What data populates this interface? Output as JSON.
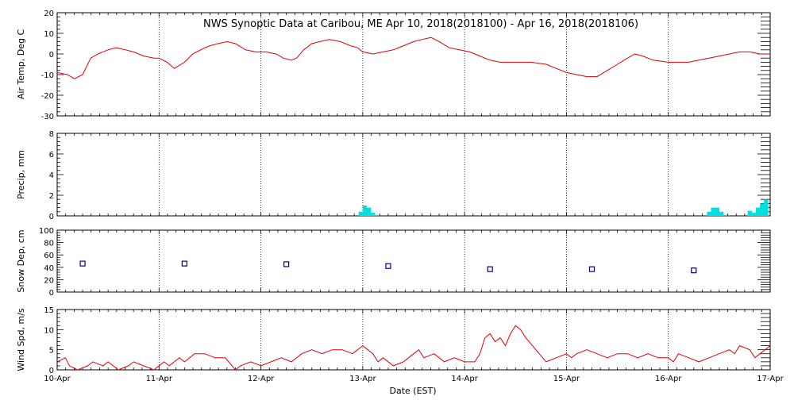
{
  "chart_data": {
    "type": "multi-panel",
    "title": "NWS Synoptic Data at Caribou, ME   Apr 10, 2018(2018100) - Apr 16, 2018(2018106)",
    "xlabel": "Date (EST)",
    "x_ticks": [
      "10-Apr",
      "11-Apr",
      "12-Apr",
      "13-Apr",
      "14-Apr",
      "15-Apr",
      "16-Apr",
      "17-Apr"
    ],
    "x_range_days": [
      0,
      7
    ],
    "panels": [
      {
        "id": "air-temp",
        "type": "line",
        "ylabel": "Air Temp, Deg C",
        "ylim": [
          -30,
          20
        ],
        "yticks": [
          -30,
          -20,
          -10,
          0,
          10,
          20
        ],
        "color": "#e00000",
        "x": [
          0,
          0.1,
          0.17,
          0.25,
          0.33,
          0.4,
          0.5,
          0.58,
          0.67,
          0.75,
          0.85,
          0.95,
          1.0,
          1.08,
          1.15,
          1.25,
          1.33,
          1.45,
          1.5,
          1.58,
          1.67,
          1.75,
          1.85,
          1.95,
          2.05,
          2.15,
          2.22,
          2.3,
          2.35,
          2.42,
          2.5,
          2.58,
          2.67,
          2.78,
          2.88,
          2.95,
          3.0,
          3.1,
          3.2,
          3.3,
          3.4,
          3.5,
          3.58,
          3.67,
          3.75,
          3.85,
          3.95,
          4.05,
          4.15,
          4.25,
          4.35,
          4.5,
          4.65,
          4.8,
          4.9,
          5.0,
          5.1,
          5.2,
          5.3,
          5.4,
          5.5,
          5.6,
          5.67,
          5.75,
          5.85,
          6.0,
          6.1,
          6.2,
          6.3,
          6.4,
          6.5,
          6.6,
          6.7,
          6.8,
          6.9,
          7.0
        ],
        "values": [
          -9,
          -10,
          -12,
          -10,
          -2,
          0,
          2,
          3,
          2,
          1,
          -1,
          -2,
          -2,
          -4,
          -7,
          -4,
          0,
          3,
          4,
          5,
          6,
          5,
          2,
          1,
          1,
          0,
          -2,
          -3,
          -2,
          2,
          5,
          6,
          7,
          6,
          4,
          3,
          1,
          0,
          1,
          2,
          4,
          6,
          7,
          8,
          6,
          3,
          2,
          1,
          -1,
          -3,
          -4,
          -4,
          -4,
          -5,
          -7,
          -9,
          -10,
          -11,
          -11,
          -8,
          -5,
          -2,
          0,
          -1,
          -3,
          -4,
          -4,
          -4,
          -3,
          -2,
          -1,
          0,
          1,
          1,
          0,
          0
        ]
      },
      {
        "id": "precip",
        "type": "bar",
        "ylabel": "Precip, mm",
        "ylim": [
          0,
          8
        ],
        "yticks": [
          0,
          2,
          4,
          6,
          8
        ],
        "color": "#00e0e0",
        "bar_width_days": 0.042,
        "x": [
          2.98,
          3.02,
          3.06,
          3.1,
          3.14,
          6.4,
          6.44,
          6.48,
          6.52,
          6.56,
          6.8,
          6.84,
          6.88,
          6.92,
          6.96
        ],
        "values": [
          0.4,
          1.0,
          0.8,
          0.3,
          0.1,
          0.4,
          0.8,
          0.8,
          0.4,
          0.1,
          0.5,
          0.3,
          0.8,
          1.2,
          1.6
        ]
      },
      {
        "id": "snow-depth",
        "type": "scatter",
        "ylabel": "Snow Dep, cm",
        "ylim": [
          0,
          100
        ],
        "yticks": [
          0,
          20,
          40,
          60,
          80,
          100
        ],
        "color": "#00008b",
        "x": [
          0.25,
          1.25,
          2.25,
          3.25,
          4.25,
          5.25,
          6.25
        ],
        "values": [
          46,
          46,
          45,
          42,
          37,
          37,
          35
        ]
      },
      {
        "id": "wind-speed",
        "type": "line",
        "ylabel": "Wind Spd, m/s",
        "ylim": [
          0,
          15
        ],
        "yticks": [
          0,
          5,
          10,
          15
        ],
        "color": "#e00000",
        "x": [
          0,
          0.08,
          0.12,
          0.2,
          0.3,
          0.35,
          0.45,
          0.5,
          0.6,
          0.7,
          0.75,
          0.85,
          0.95,
          1.0,
          1.05,
          1.1,
          1.2,
          1.25,
          1.3,
          1.35,
          1.45,
          1.55,
          1.65,
          1.75,
          1.8,
          1.9,
          2.0,
          2.1,
          2.2,
          2.3,
          2.4,
          2.5,
          2.6,
          2.7,
          2.8,
          2.9,
          3.0,
          3.05,
          3.1,
          3.15,
          3.2,
          3.3,
          3.4,
          3.5,
          3.55,
          3.6,
          3.7,
          3.8,
          3.9,
          4.0,
          4.1,
          4.15,
          4.2,
          4.25,
          4.3,
          4.35,
          4.4,
          4.45,
          4.5,
          4.55,
          4.6,
          4.7,
          4.8,
          4.9,
          5.0,
          5.05,
          5.1,
          5.2,
          5.3,
          5.4,
          5.5,
          5.6,
          5.7,
          5.8,
          5.9,
          6.0,
          6.05,
          6.1,
          6.2,
          6.3,
          6.4,
          6.5,
          6.6,
          6.65,
          6.7,
          6.8,
          6.85,
          6.9,
          7.0
        ],
        "values": [
          2,
          3,
          1,
          0,
          1,
          2,
          1,
          2,
          0,
          1,
          2,
          1,
          0,
          1,
          2,
          1,
          3,
          2,
          3,
          4,
          4,
          3,
          3,
          0,
          1,
          2,
          1,
          2,
          3,
          2,
          4,
          5,
          4,
          5,
          5,
          4,
          6,
          5,
          4,
          2,
          3,
          1,
          2,
          4,
          5,
          3,
          4,
          2,
          3,
          2,
          2,
          4,
          8,
          9,
          7,
          8,
          6,
          9,
          11,
          10,
          8,
          5,
          2,
          3,
          4,
          3,
          4,
          5,
          4,
          3,
          4,
          4,
          3,
          4,
          3,
          3,
          2,
          4,
          3,
          2,
          3,
          4,
          5,
          4,
          6,
          5,
          3,
          4,
          6
        ],
        "extra": {}
      }
    ]
  }
}
